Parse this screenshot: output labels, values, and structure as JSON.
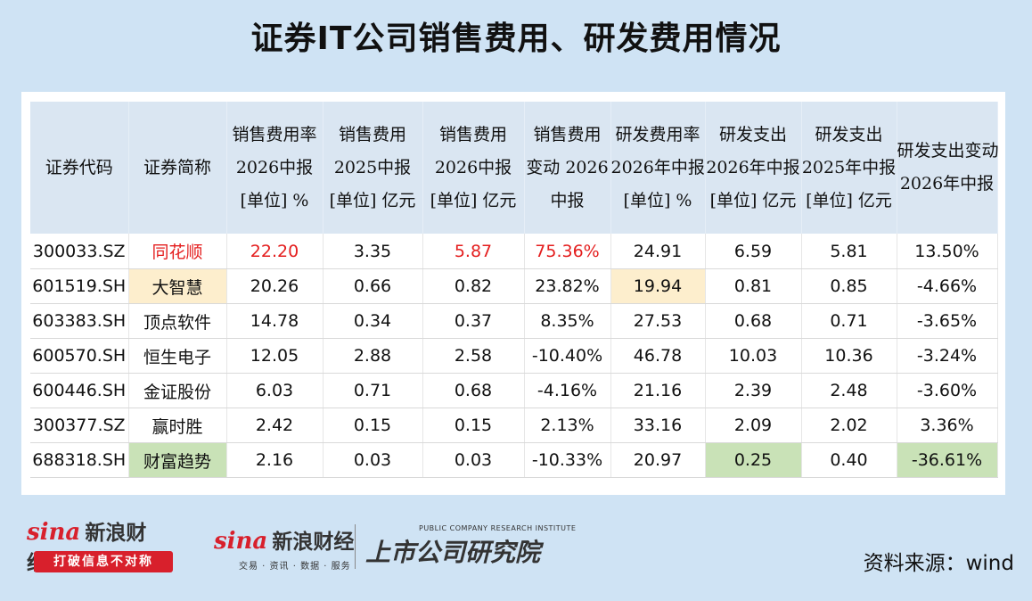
{
  "title": "证券IT公司销售费用、研发费用情况",
  "headers": [
    [
      "证券代码"
    ],
    [
      "证券简称"
    ],
    [
      "销售费用率",
      "2026中报",
      "[单位] %"
    ],
    [
      "销售费用",
      "2025中报",
      "[单位] 亿元"
    ],
    [
      "销售费用",
      "2026中报",
      "[单位] 亿元"
    ],
    [
      "销售费用",
      "变动 2026",
      "中报"
    ],
    [
      "研发费用率",
      "2026年中报",
      "[单位] %"
    ],
    [
      "研发支出",
      "2026年中报",
      "[单位] 亿元"
    ],
    [
      "研发支出",
      "2025年中报",
      "[单位] 亿元"
    ],
    [
      "研发支出变动",
      "2026年中报"
    ]
  ],
  "rows": [
    [
      "300033.SZ",
      "同花顺",
      "22.20",
      "3.35",
      "5.87",
      "75.36%",
      "24.91",
      "6.59",
      "5.81",
      "13.50%"
    ],
    [
      "601519.SH",
      "大智慧",
      "20.26",
      "0.66",
      "0.82",
      "23.82%",
      "19.94",
      "0.81",
      "0.85",
      "-4.66%"
    ],
    [
      "603383.SH",
      "顶点软件",
      "14.78",
      "0.34",
      "0.37",
      "8.35%",
      "27.53",
      "0.68",
      "0.71",
      "-3.65%"
    ],
    [
      "600570.SH",
      "恒生电子",
      "12.05",
      "2.88",
      "2.58",
      "-10.40%",
      "46.78",
      "10.03",
      "10.36",
      "-3.24%"
    ],
    [
      "600446.SH",
      "金证股份",
      "6.03",
      "0.71",
      "0.68",
      "-4.16%",
      "21.16",
      "2.39",
      "2.48",
      "-3.60%"
    ],
    [
      "300377.SZ",
      "赢时胜",
      "2.42",
      "0.15",
      "0.15",
      "2.13%",
      "33.16",
      "2.09",
      "2.02",
      "3.36%"
    ],
    [
      "688318.SH",
      "财富趋势",
      "2.16",
      "0.03",
      "0.03",
      "-10.33%",
      "20.97",
      "0.25",
      "0.40",
      "-36.61%"
    ]
  ],
  "colors": {
    "background": "#cfe3f4",
    "header": "#dae6f2",
    "red_text": "#e41e1e",
    "highlight_yellow": "#fdeecd",
    "highlight_green": "#c9e2b7"
  },
  "footer": {
    "logo1_sina": "sina",
    "logo1_brand": "新浪财经",
    "logo1_slogan": "打破信息不对称",
    "logo2_sina": "sina",
    "logo2_brand": "新浪财经",
    "logo2_sub": "交易 · 资讯 · 数据 · 服务",
    "institute_en": "PUBLIC COMPANY RESEARCH INSTITUTE",
    "institute_cn": "上市公司研究院",
    "source": "资料来源：wind"
  }
}
